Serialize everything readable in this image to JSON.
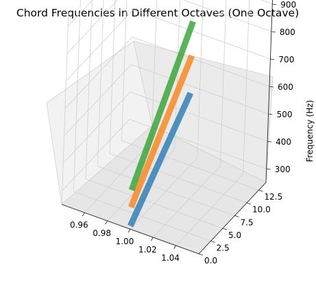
{
  "chart_data": {
    "type": "surface3d",
    "title": "Chord Frequencies in Different Octaves (One Octave)",
    "xlabel": "",
    "ylabel": "",
    "zlabel": "Frequency (Hz)",
    "xlim": [
      0.94,
      1.06
    ],
    "ylim": [
      0,
      14
    ],
    "zlim": [
      250,
      950
    ],
    "x_ticks": [
      "0.96",
      "0.98",
      "1.00",
      "1.02",
      "1.04"
    ],
    "y_ticks": [
      "0.0",
      "2.5",
      "5.0",
      "7.5",
      "10.0",
      "12.5"
    ],
    "z_ticks": [
      "300",
      "400",
      "500",
      "600",
      "700",
      "800",
      "900"
    ],
    "grid": true,
    "series": [
      {
        "color": "#1f77b4",
        "x": [
          1.0,
          1.0
        ],
        "y": [
          0,
          12
        ],
        "z": [
          261.63,
          523.25
        ]
      },
      {
        "color": "#ff7f0e",
        "x": [
          1.0,
          1.0
        ],
        "y": [
          0,
          12
        ],
        "z": [
          329.63,
          659.26
        ]
      },
      {
        "color": "#2ca02c",
        "x": [
          1.0,
          1.0
        ],
        "y": [
          0,
          12
        ],
        "z": [
          392.0,
          783.99
        ]
      }
    ]
  }
}
